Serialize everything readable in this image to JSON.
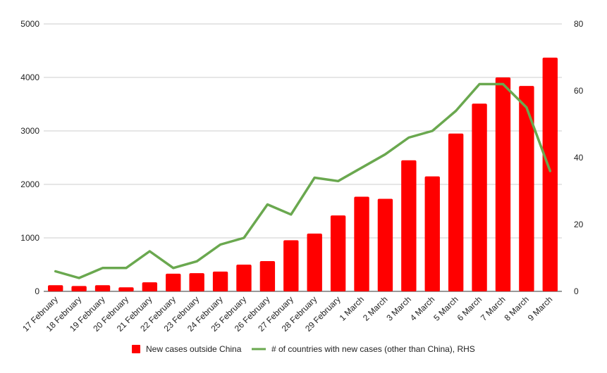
{
  "chart_data": {
    "type": "bar",
    "categories": [
      "17 February",
      "18 February",
      "19 February",
      "20 February",
      "21 February",
      "22 February",
      "23 February",
      "24 February",
      "25 February",
      "26 February",
      "27 February",
      "28 February",
      "29 February",
      "1 March",
      "2 March",
      "3 March",
      "4 March",
      "5 March",
      "6 March",
      "7 March",
      "8 March",
      "9 March"
    ],
    "series": [
      {
        "name": "New cases outside China",
        "type": "bar",
        "axis": "left",
        "color": "#ff0000",
        "values": [
          115,
          100,
          115,
          75,
          170,
          330,
          340,
          370,
          500,
          565,
          955,
          1080,
          1420,
          1770,
          1730,
          2450,
          2150,
          2950,
          3510,
          4000,
          3840,
          4370
        ]
      },
      {
        "name": "# of countries with new cases (other than China), RHS",
        "type": "line",
        "axis": "right",
        "color": "#6aa84f",
        "values": [
          6,
          4,
          7,
          7,
          12,
          7,
          9,
          14,
          16,
          26,
          23,
          34,
          33,
          37,
          41,
          46,
          48,
          54,
          62,
          62,
          55,
          36
        ]
      }
    ],
    "y_left": {
      "ylim": [
        0,
        5000
      ],
      "ticks": [
        "0",
        "1000",
        "2000",
        "3000",
        "4000",
        "5000"
      ]
    },
    "y_right": {
      "ylim": [
        0,
        80
      ],
      "ticks": [
        "0",
        "20",
        "40",
        "60",
        "80"
      ]
    },
    "grid": true,
    "legend": "bottom"
  }
}
